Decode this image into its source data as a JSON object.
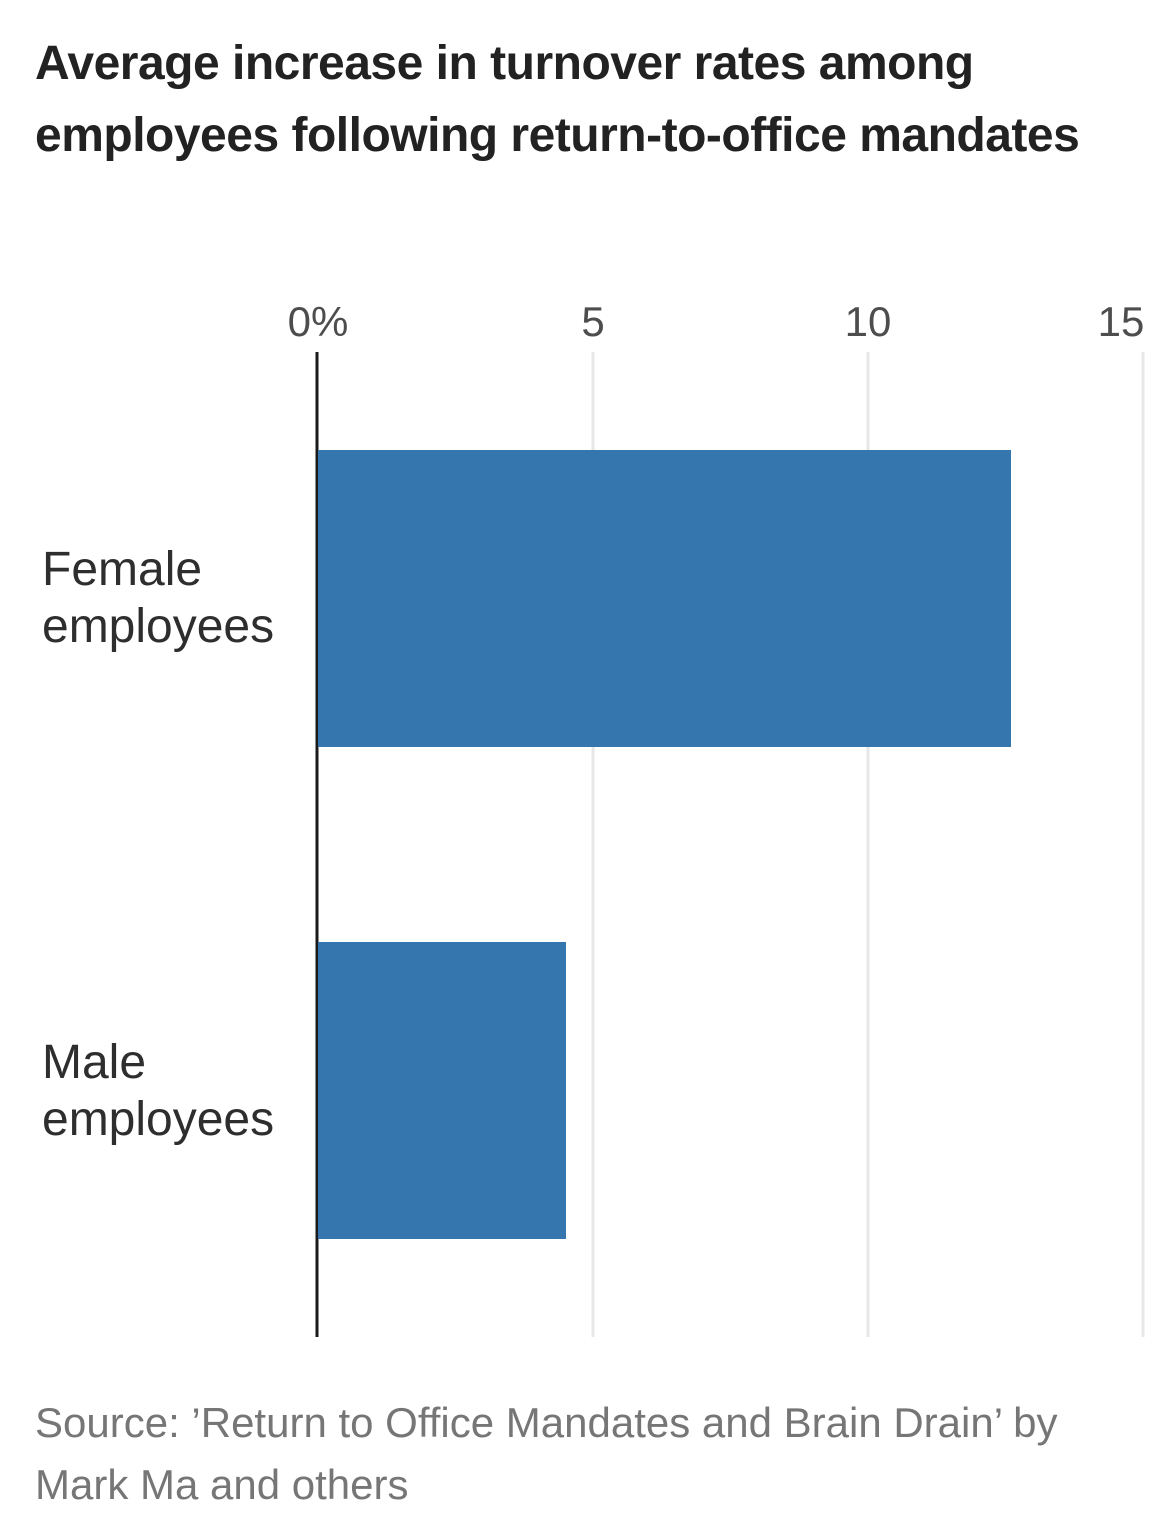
{
  "source": {
    "text": "Source: ’Return to Office Mandates and Brain Drain’ by Mark Ma and others"
  },
  "chart_data": {
    "type": "bar",
    "orientation": "horizontal",
    "title": "Average increase in turnover rates among employees following return-to-office mandates",
    "categories": [
      "Female employees",
      "Male employees"
    ],
    "values": [
      12.6,
      4.5
    ],
    "value_unit": "%",
    "xlabel": "",
    "ylabel": "",
    "xlim": [
      0,
      15
    ],
    "xticks": [
      {
        "value": 0,
        "label": "0%"
      },
      {
        "value": 5,
        "label": "5"
      },
      {
        "value": 10,
        "label": "10"
      },
      {
        "value": 15,
        "label": "15"
      }
    ],
    "grid": "vertical, light gray, on ticks > 0",
    "legend": "none",
    "colors": {
      "bar": "#3476ad",
      "axis": "#1a1a1a",
      "gridline": "#e7e7e7",
      "title_text": "#222222",
      "category_text": "#2e2e2e",
      "tick_text": "#4d4d4d",
      "source_text": "#767676",
      "background": "#ffffff"
    }
  }
}
